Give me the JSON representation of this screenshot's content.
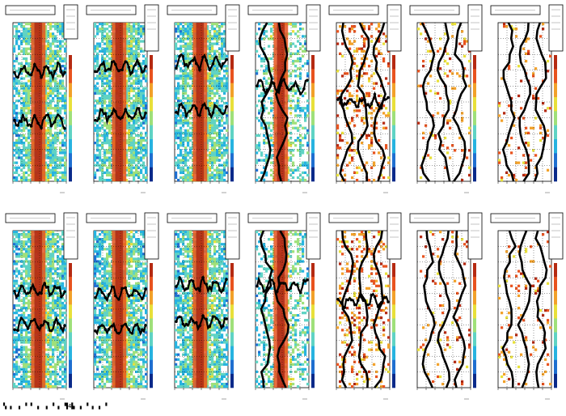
{
  "chart_data": {
    "type": "heatmap",
    "layout": {
      "rows": 2,
      "cols": 7
    },
    "colorscale": [
      "#0a2a8a",
      "#1f6fd0",
      "#27b3e0",
      "#5fd3c4",
      "#9fe07a",
      "#e8e03a",
      "#f2a12a",
      "#e8531f",
      "#b52a12"
    ],
    "panels": [
      {
        "density": "dense",
        "overlay_bands": [
          0.3,
          0.62
        ],
        "band": true,
        "stats_box": "tall"
      },
      {
        "density": "dense",
        "overlay_bands": [
          0.28,
          0.58
        ],
        "band": true,
        "stats_box": "normal"
      },
      {
        "density": "dense",
        "overlay_bands": [
          0.25,
          0.55
        ],
        "band": true,
        "stats_box": "normal"
      },
      {
        "density": "medium",
        "overlay_bands": [
          0.4
        ],
        "band": true,
        "stats_box": "normal"
      },
      {
        "density": "sparse",
        "overlay_bands": [
          0.5
        ],
        "band": false,
        "stats_box": "normal"
      },
      {
        "density": "vsparse",
        "overlay_bands": [],
        "band": false,
        "stats_box": "normal"
      },
      {
        "density": "vsparse",
        "overlay_bands": [],
        "band": false,
        "stats_box": "normal"
      },
      {
        "density": "dense",
        "overlay_bands": [
          0.38,
          0.6
        ],
        "band": true,
        "stats_box": "normal"
      },
      {
        "density": "dense",
        "overlay_bands": [
          0.4,
          0.62
        ],
        "band": true,
        "stats_box": "normal"
      },
      {
        "density": "dense",
        "overlay_bands": [
          0.35,
          0.58
        ],
        "band": true,
        "stats_box": "normal"
      },
      {
        "density": "medium",
        "overlay_bands": [
          0.35
        ],
        "band": true,
        "stats_box": "normal"
      },
      {
        "density": "sparse",
        "overlay_bands": [
          0.45
        ],
        "band": false,
        "stats_box": "normal"
      },
      {
        "density": "vsparse",
        "overlay_bands": [],
        "band": false,
        "stats_box": "normal"
      },
      {
        "density": "vsparse",
        "overlay_bands": [],
        "band": false,
        "stats_box": "normal"
      }
    ]
  },
  "footer": {
    "text": "▚ ▖ ▗ ▝  ▘  ▖ ▗ ▝ ▖ ▜4▙  ▗ ▝ ▖ ▖ ▘"
  }
}
